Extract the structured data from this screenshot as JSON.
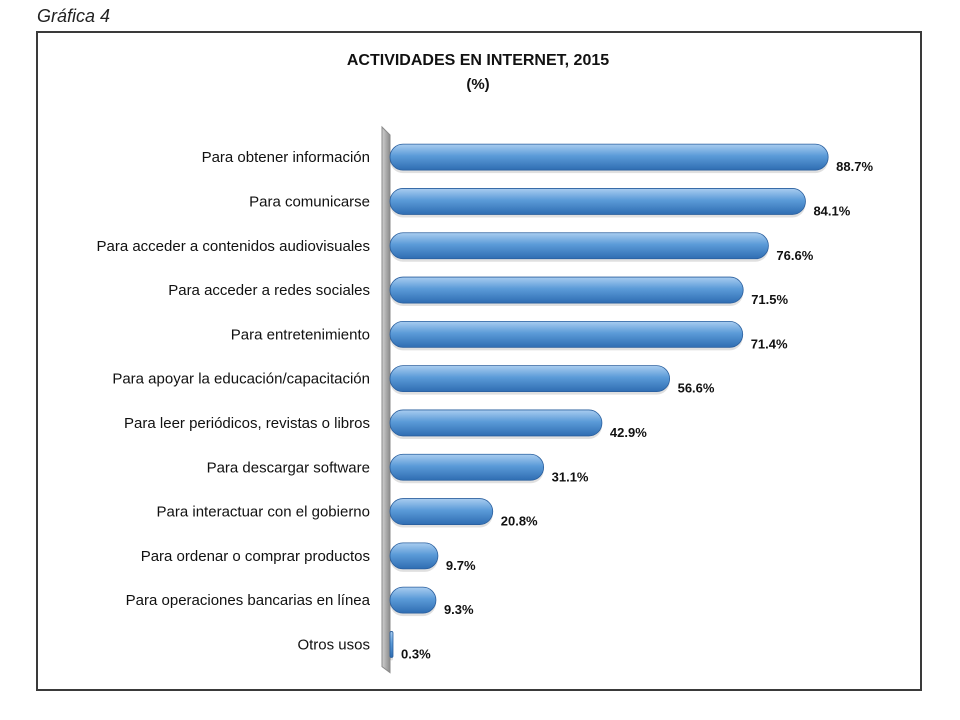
{
  "caption": "Gráfica 4",
  "chart_data": {
    "type": "bar",
    "orientation": "horizontal",
    "title": "ACTIVIDADES EN INTERNET, 2015",
    "subtitle": "(%)",
    "xlabel": "",
    "ylabel": "",
    "xlim": [
      0,
      100
    ],
    "grid": false,
    "legend": "none",
    "categories": [
      "Para obtener información",
      "Para comunicarse",
      "Para acceder a contenidos audiovisuales",
      "Para acceder a redes sociales",
      "Para entretenimiento",
      "Para apoyar la educación/capacitación",
      "Para leer periódicos, revistas o libros",
      "Para descargar software",
      "Para interactuar con el gobierno",
      "Para ordenar o comprar productos",
      "Para operaciones bancarias en línea",
      "Otros usos"
    ],
    "values": [
      88.7,
      84.1,
      76.6,
      71.5,
      71.4,
      56.6,
      42.9,
      31.1,
      20.8,
      9.7,
      9.3,
      0.3
    ],
    "value_labels": [
      "88.7%",
      "84.1%",
      "76.6%",
      "71.5%",
      "71.4%",
      "56.6%",
      "42.9%",
      "31.1%",
      "20.8%",
      "9.7%",
      "9.3%",
      "0.3%"
    ],
    "colors": {
      "bar_light": "#a9cdf0",
      "bar_main": "#5b9bd8",
      "bar_dark": "#2f6db2",
      "axis": "#8a8a8a"
    }
  }
}
